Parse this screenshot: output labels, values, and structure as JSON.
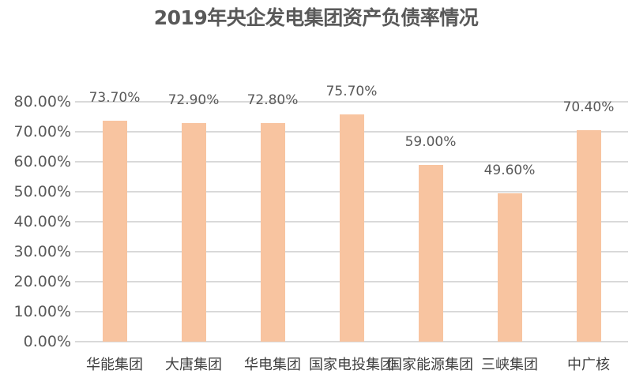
{
  "title": "2019年央企发电集团资产负债率情况",
  "colors": {
    "bar": "#F8C4A0",
    "grid": "#D9D9D9",
    "text": "#595959"
  },
  "chart_data": {
    "type": "bar",
    "title": "2019年央企发电集团资产负债率情况",
    "xlabel": "",
    "ylabel": "",
    "categories": [
      "华能集团",
      "大唐集团",
      "华电集团",
      "国家电投集团",
      "国家能源集团",
      "三峡集团",
      "中广核"
    ],
    "values": [
      73.7,
      72.9,
      72.8,
      75.7,
      59.0,
      49.6,
      70.4
    ],
    "data_labels": [
      "73.70%",
      "72.90%",
      "72.80%",
      "75.70%",
      "59.00%",
      "49.60%",
      "70.40%"
    ],
    "ylim": [
      0,
      80
    ],
    "yticks": [
      "0.00%",
      "10.00%",
      "20.00%",
      "30.00%",
      "40.00%",
      "50.00%",
      "60.00%",
      "70.00%",
      "80.00%"
    ],
    "grid": true,
    "legend": null
  }
}
